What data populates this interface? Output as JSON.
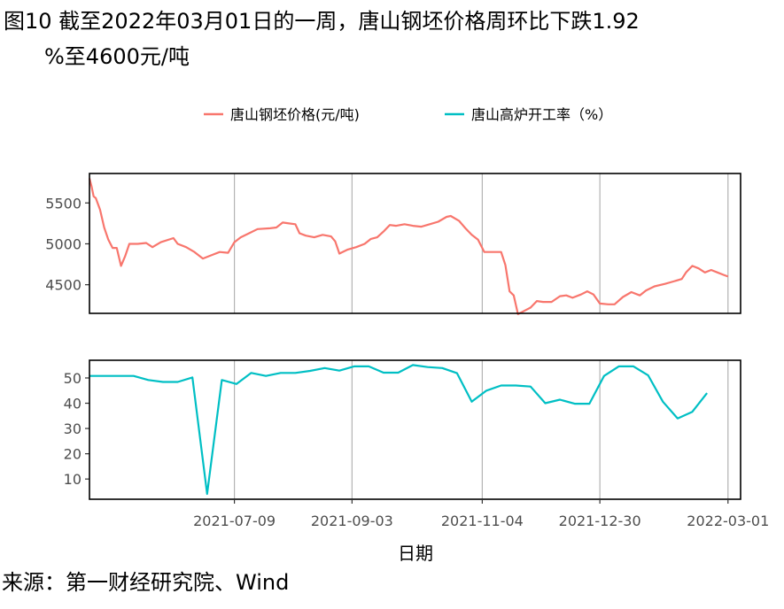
{
  "title": {
    "line1": "图10  截至2022年03月01日的一周，唐山钢坯价格周环比下跌1.92",
    "line2": "%至4600元/吨"
  },
  "source": "来源：第一财经研究院、Wind",
  "chart_data": {
    "type": "line",
    "xlabel": "日期",
    "x_ticks": [
      "2021-07-09",
      "2021-09-03",
      "2021-11-04",
      "2021-12-30",
      "2022-03-01"
    ],
    "x_range": [
      "2021-05-01",
      "2022-03-07"
    ],
    "legend_position": "top",
    "grid": "vertical major gridlines only",
    "series": [
      {
        "name": "唐山钢坯价格(元/吨)",
        "color": "#F8766D",
        "panel": "top",
        "ylim": [
          4150,
          5860
        ],
        "y_ticks": [
          4500,
          5000,
          5500
        ],
        "points": [
          [
            "2021-05-01",
            5800
          ],
          [
            "2021-05-02",
            5700
          ],
          [
            "2021-05-03",
            5580
          ],
          [
            "2021-05-04",
            5560
          ],
          [
            "2021-05-06",
            5420
          ],
          [
            "2021-05-08",
            5200
          ],
          [
            "2021-05-10",
            5050
          ],
          [
            "2021-05-12",
            4950
          ],
          [
            "2021-05-14",
            4950
          ],
          [
            "2021-05-16",
            4730
          ],
          [
            "2021-05-18",
            4850
          ],
          [
            "2021-05-20",
            5000
          ],
          [
            "2021-05-24",
            5000
          ],
          [
            "2021-05-28",
            5010
          ],
          [
            "2021-05-31",
            4960
          ],
          [
            "2021-06-04",
            5020
          ],
          [
            "2021-06-10",
            5070
          ],
          [
            "2021-06-12",
            5000
          ],
          [
            "2021-06-16",
            4960
          ],
          [
            "2021-06-20",
            4900
          ],
          [
            "2021-06-24",
            4820
          ],
          [
            "2021-06-28",
            4860
          ],
          [
            "2021-07-02",
            4900
          ],
          [
            "2021-07-06",
            4890
          ],
          [
            "2021-07-09",
            5020
          ],
          [
            "2021-07-12",
            5080
          ],
          [
            "2021-07-16",
            5130
          ],
          [
            "2021-07-20",
            5180
          ],
          [
            "2021-07-26",
            5190
          ],
          [
            "2021-07-29",
            5200
          ],
          [
            "2021-08-01",
            5260
          ],
          [
            "2021-08-04",
            5250
          ],
          [
            "2021-08-07",
            5240
          ],
          [
            "2021-08-09",
            5130
          ],
          [
            "2021-08-12",
            5100
          ],
          [
            "2021-08-16",
            5080
          ],
          [
            "2021-08-20",
            5110
          ],
          [
            "2021-08-24",
            5090
          ],
          [
            "2021-08-26",
            5030
          ],
          [
            "2021-08-28",
            4880
          ],
          [
            "2021-09-01",
            4930
          ],
          [
            "2021-09-05",
            4960
          ],
          [
            "2021-09-09",
            5000
          ],
          [
            "2021-09-12",
            5060
          ],
          [
            "2021-09-15",
            5080
          ],
          [
            "2021-09-18",
            5150
          ],
          [
            "2021-09-21",
            5230
          ],
          [
            "2021-09-24",
            5220
          ],
          [
            "2021-09-28",
            5240
          ],
          [
            "2021-10-02",
            5220
          ],
          [
            "2021-10-06",
            5210
          ],
          [
            "2021-10-10",
            5240
          ],
          [
            "2021-10-14",
            5270
          ],
          [
            "2021-10-18",
            5330
          ],
          [
            "2021-10-20",
            5340
          ],
          [
            "2021-10-24",
            5280
          ],
          [
            "2021-10-27",
            5190
          ],
          [
            "2021-10-30",
            5110
          ],
          [
            "2021-11-02",
            5050
          ],
          [
            "2021-11-05",
            4900
          ],
          [
            "2021-11-09",
            4900
          ],
          [
            "2021-11-13",
            4900
          ],
          [
            "2021-11-15",
            4740
          ],
          [
            "2021-11-17",
            4420
          ],
          [
            "2021-11-19",
            4370
          ],
          [
            "2021-11-21",
            4140
          ],
          [
            "2021-11-24",
            4180
          ],
          [
            "2021-11-27",
            4220
          ],
          [
            "2021-11-30",
            4300
          ],
          [
            "2021-12-03",
            4290
          ],
          [
            "2021-12-07",
            4290
          ],
          [
            "2021-12-11",
            4360
          ],
          [
            "2021-12-14",
            4370
          ],
          [
            "2021-12-17",
            4340
          ],
          [
            "2021-12-21",
            4380
          ],
          [
            "2021-12-24",
            4420
          ],
          [
            "2021-12-27",
            4380
          ],
          [
            "2021-12-30",
            4270
          ],
          [
            "2022-01-03",
            4260
          ],
          [
            "2022-01-06",
            4260
          ],
          [
            "2022-01-10",
            4350
          ],
          [
            "2022-01-14",
            4410
          ],
          [
            "2022-01-18",
            4370
          ],
          [
            "2022-01-21",
            4430
          ],
          [
            "2022-01-25",
            4480
          ],
          [
            "2022-01-30",
            4510
          ],
          [
            "2022-02-03",
            4540
          ],
          [
            "2022-02-07",
            4570
          ],
          [
            "2022-02-09",
            4650
          ],
          [
            "2022-02-12",
            4730
          ],
          [
            "2022-02-15",
            4700
          ],
          [
            "2022-02-18",
            4650
          ],
          [
            "2022-02-21",
            4680
          ],
          [
            "2022-02-24",
            4650
          ],
          [
            "2022-02-27",
            4620
          ],
          [
            "2022-03-01",
            4600
          ]
        ]
      },
      {
        "name": "唐山高炉开工率（%）",
        "color": "#00BFC4",
        "panel": "bottom",
        "ylim": [
          2,
          57
        ],
        "y_ticks": [
          10,
          20,
          30,
          40,
          50
        ],
        "points": [
          [
            "2021-05-01",
            50.8
          ],
          [
            "2021-05-08",
            50.8
          ],
          [
            "2021-05-15",
            50.8
          ],
          [
            "2021-05-22",
            50.8
          ],
          [
            "2021-05-29",
            49.2
          ],
          [
            "2021-06-05",
            48.4
          ],
          [
            "2021-06-12",
            48.4
          ],
          [
            "2021-06-19",
            50.2
          ],
          [
            "2021-06-26",
            4.1
          ],
          [
            "2021-07-03",
            49.2
          ],
          [
            "2021-07-10",
            47.6
          ],
          [
            "2021-07-17",
            52.0
          ],
          [
            "2021-07-24",
            50.8
          ],
          [
            "2021-07-31",
            52.0
          ],
          [
            "2021-08-07",
            52.0
          ],
          [
            "2021-08-14",
            52.8
          ],
          [
            "2021-08-21",
            53.9
          ],
          [
            "2021-08-28",
            52.9
          ],
          [
            "2021-09-04",
            54.6
          ],
          [
            "2021-09-11",
            54.6
          ],
          [
            "2021-09-18",
            52.1
          ],
          [
            "2021-09-25",
            52.1
          ],
          [
            "2021-10-02",
            55.1
          ],
          [
            "2021-10-09",
            54.3
          ],
          [
            "2021-10-16",
            53.9
          ],
          [
            "2021-10-23",
            51.9
          ],
          [
            "2021-10-30",
            40.6
          ],
          [
            "2021-11-06",
            45.0
          ],
          [
            "2021-11-13",
            47.0
          ],
          [
            "2021-11-20",
            47.0
          ],
          [
            "2021-11-27",
            46.6
          ],
          [
            "2021-12-04",
            40.0
          ],
          [
            "2021-12-11",
            41.4
          ],
          [
            "2021-12-18",
            39.8
          ],
          [
            "2021-12-25",
            39.8
          ],
          [
            "2022-01-01",
            50.8
          ],
          [
            "2022-01-08",
            54.6
          ],
          [
            "2022-01-15",
            54.6
          ],
          [
            "2022-01-22",
            51.0
          ],
          [
            "2022-01-29",
            40.6
          ],
          [
            "2022-02-05",
            34.0
          ],
          [
            "2022-02-12",
            36.6
          ],
          [
            "2022-02-19",
            44.0
          ]
        ]
      }
    ]
  }
}
